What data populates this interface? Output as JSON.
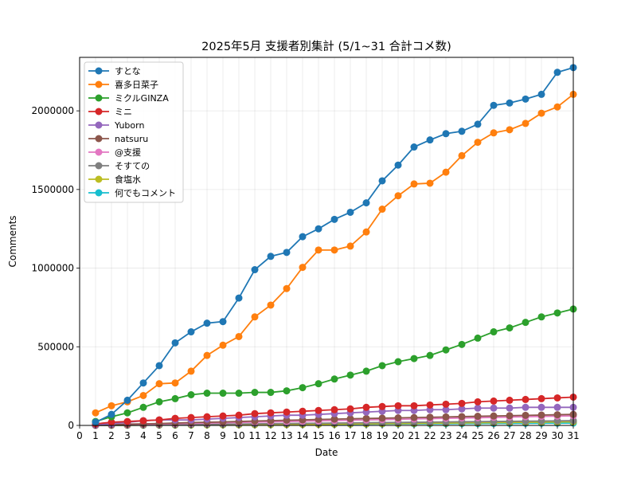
{
  "chart_data": {
    "type": "line",
    "title": "2025年5月 支援者別集計 (5/1~31 合計コメ数)",
    "xlabel": "Date",
    "ylabel": "Comments",
    "xlim": [
      0,
      31
    ],
    "ylim": [
      0,
      2340000
    ],
    "x_ticks": [
      0,
      1,
      2,
      3,
      4,
      5,
      6,
      7,
      8,
      9,
      10,
      11,
      12,
      13,
      14,
      15,
      16,
      17,
      18,
      19,
      20,
      21,
      22,
      23,
      24,
      25,
      26,
      27,
      28,
      29,
      30,
      31
    ],
    "y_ticks": [
      0,
      500000,
      1000000,
      1500000,
      2000000
    ],
    "grid": true,
    "legend_position": "top-left",
    "x": [
      1,
      2,
      3,
      4,
      5,
      6,
      7,
      8,
      9,
      10,
      11,
      12,
      13,
      14,
      15,
      16,
      17,
      18,
      19,
      20,
      21,
      22,
      23,
      24,
      25,
      26,
      27,
      28,
      29,
      30,
      31
    ],
    "series": [
      {
        "name": "すとな",
        "color": "#1f77b4",
        "values": [
          20000,
          70000,
          160000,
          270000,
          380000,
          525000,
          595000,
          650000,
          660000,
          810000,
          990000,
          1075000,
          1100000,
          1200000,
          1250000,
          1310000,
          1355000,
          1415000,
          1555000,
          1655000,
          1770000,
          1815000,
          1855000,
          1870000,
          1915000,
          2035000,
          2050000,
          2075000,
          2105000,
          2245000,
          2275000
        ]
      },
      {
        "name": "喜多日菜子",
        "color": "#ff7f0e",
        "values": [
          80000,
          125000,
          150000,
          190000,
          265000,
          270000,
          345000,
          445000,
          510000,
          565000,
          690000,
          765000,
          870000,
          1005000,
          1115000,
          1115000,
          1140000,
          1230000,
          1375000,
          1460000,
          1535000,
          1540000,
          1610000,
          1715000,
          1800000,
          1860000,
          1880000,
          1920000,
          1985000,
          2025000,
          2105000
        ]
      },
      {
        "name": "ミクルGINZA",
        "color": "#2ca02c",
        "values": [
          25000,
          55000,
          80000,
          115000,
          150000,
          170000,
          195000,
          205000,
          205000,
          205000,
          210000,
          210000,
          220000,
          240000,
          265000,
          295000,
          320000,
          345000,
          380000,
          405000,
          425000,
          445000,
          480000,
          515000,
          555000,
          595000,
          620000,
          655000,
          690000,
          715000,
          740000
        ]
      },
      {
        "name": "ミニ",
        "color": "#d62728",
        "values": [
          10000,
          20000,
          25000,
          30000,
          35000,
          45000,
          50000,
          55000,
          60000,
          65000,
          75000,
          80000,
          85000,
          90000,
          95000,
          100000,
          105000,
          115000,
          120000,
          125000,
          125000,
          130000,
          135000,
          140000,
          150000,
          155000,
          160000,
          165000,
          170000,
          175000,
          180000
        ]
      },
      {
        "name": "Yuborn",
        "color": "#9467bd",
        "values": [
          5000,
          10000,
          20000,
          30000,
          35000,
          35000,
          35000,
          40000,
          45000,
          50000,
          55000,
          60000,
          65000,
          65000,
          70000,
          75000,
          80000,
          85000,
          90000,
          95000,
          95000,
          100000,
          100000,
          105000,
          110000,
          110000,
          110000,
          115000,
          115000,
          115000,
          115000
        ]
      },
      {
        "name": "natsuru",
        "color": "#8c564b",
        "values": [
          2000,
          5000,
          8000,
          10000,
          12000,
          15000,
          18000,
          20000,
          22000,
          25000,
          28000,
          30000,
          33000,
          35000,
          38000,
          40000,
          42000,
          44000,
          46000,
          48000,
          50000,
          52000,
          54000,
          56000,
          58000,
          60000,
          62000,
          64000,
          66000,
          68000,
          70000
        ]
      },
      {
        "name": "@支援",
        "color": "#e377c2",
        "values": [
          1000,
          3000,
          5000,
          7000,
          9000,
          11000,
          13000,
          15000,
          17000,
          19000,
          21000,
          23000,
          25000,
          27000,
          29000,
          31000,
          33000,
          35000,
          37000,
          39000,
          41000,
          43000,
          45000,
          47000,
          49000,
          51000,
          53000,
          55000,
          57000,
          59000,
          61000
        ]
      },
      {
        "name": "そすての",
        "color": "#7f7f7f",
        "values": [
          0,
          1000,
          2000,
          3000,
          4000,
          5000,
          6000,
          7000,
          8000,
          9000,
          10000,
          11000,
          12000,
          13000,
          14000,
          15000,
          16000,
          17000,
          18000,
          19000,
          20000,
          21000,
          22000,
          23000,
          24000,
          25000,
          26000,
          27000,
          28000,
          29000,
          30000
        ]
      },
      {
        "name": "食塩水",
        "color": "#bcbd22",
        "values": [
          0,
          500,
          1000,
          1500,
          2000,
          2500,
          3000,
          3500,
          4000,
          4500,
          5000,
          5500,
          6000,
          6500,
          7000,
          8000,
          9000,
          10000,
          11000,
          12000,
          13000,
          14000,
          15000,
          16000,
          17000,
          18000,
          19000,
          20000,
          21000,
          22000,
          23000
        ]
      },
      {
        "name": "何でもコメント",
        "color": "#17becf",
        "values": [
          0,
          500,
          1000,
          1500,
          2000,
          2500,
          3000,
          3500,
          4000,
          4500,
          5000,
          5500,
          6000,
          6500,
          7000,
          7500,
          8000,
          8500,
          9000,
          9500,
          10000,
          10500,
          11000,
          11500,
          12000,
          12500,
          13000,
          13500,
          14000,
          14500,
          15000
        ]
      }
    ]
  }
}
